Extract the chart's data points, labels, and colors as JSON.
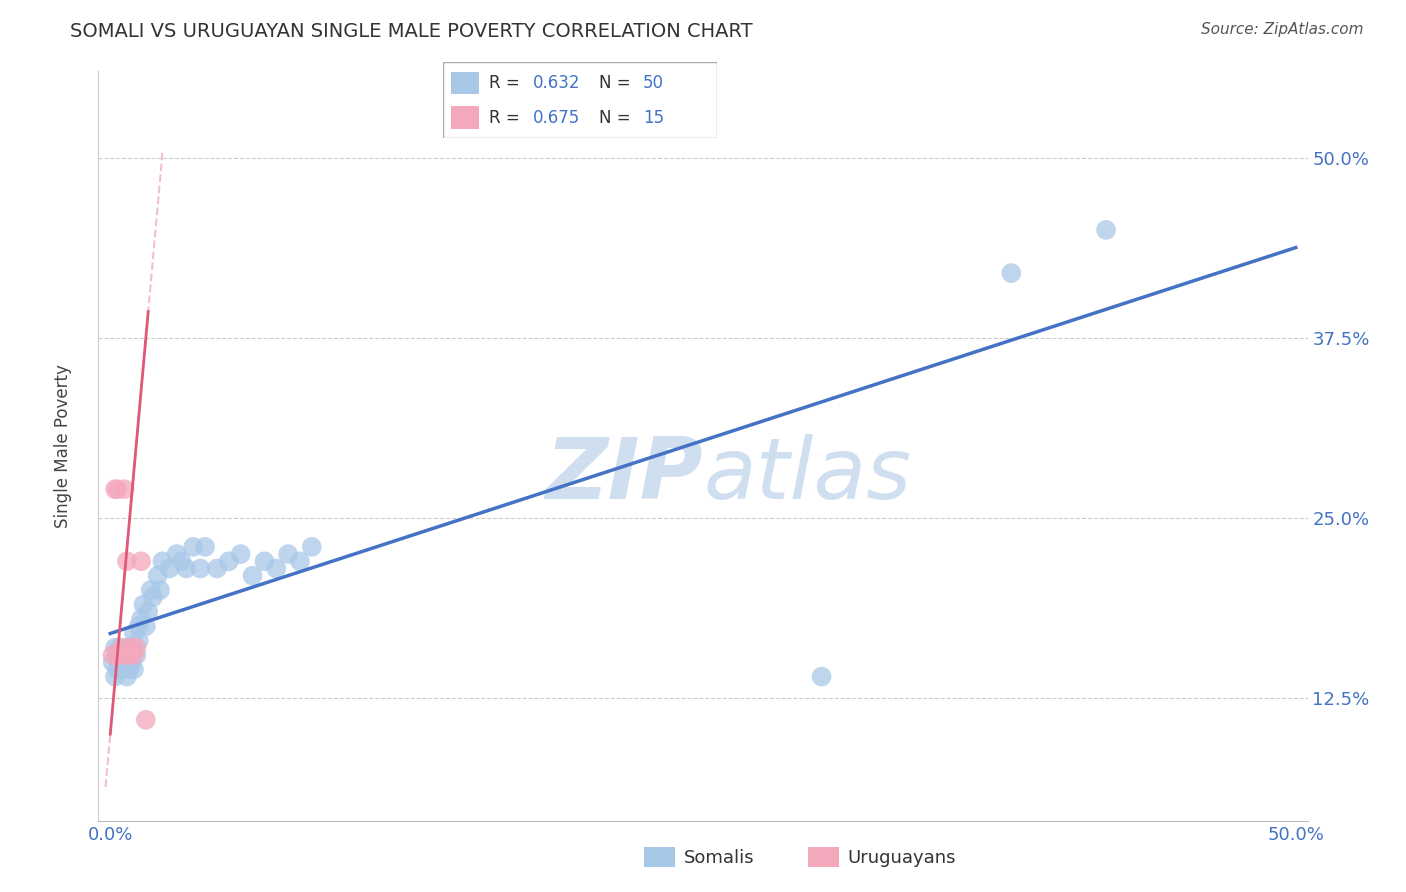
{
  "title": "SOMALI VS URUGUAYAN SINGLE MALE POVERTY CORRELATION CHART",
  "source": "Source: ZipAtlas.com",
  "ylabel_label": "Single Male Poverty",
  "somali_R": 0.632,
  "somali_N": 50,
  "uruguayan_R": 0.675,
  "uruguayan_N": 15,
  "somali_color": "#a8c8e8",
  "uruguayan_color": "#f4a8bc",
  "somali_line_color": "#4472c4",
  "uruguayan_line_color": "#e05878",
  "uruguayan_dashed_color": "#f0b8c8",
  "legend_color": "#4472c4",
  "watermark_color": "#d0dff0",
  "somali_x": [
    0.001,
    0.002,
    0.002,
    0.003,
    0.003,
    0.004,
    0.004,
    0.005,
    0.005,
    0.006,
    0.006,
    0.007,
    0.007,
    0.008,
    0.008,
    0.009,
    0.01,
    0.01,
    0.01,
    0.011,
    0.012,
    0.012,
    0.013,
    0.014,
    0.015,
    0.016,
    0.017,
    0.018,
    0.02,
    0.021,
    0.022,
    0.025,
    0.028,
    0.03,
    0.032,
    0.035,
    0.038,
    0.04,
    0.045,
    0.05,
    0.055,
    0.06,
    0.065,
    0.07,
    0.075,
    0.08,
    0.085,
    0.3,
    0.38,
    0.42
  ],
  "somali_y": [
    0.15,
    0.16,
    0.14,
    0.155,
    0.145,
    0.16,
    0.15,
    0.155,
    0.145,
    0.15,
    0.155,
    0.16,
    0.14,
    0.155,
    0.145,
    0.15,
    0.16,
    0.17,
    0.145,
    0.155,
    0.165,
    0.175,
    0.18,
    0.19,
    0.175,
    0.185,
    0.2,
    0.195,
    0.21,
    0.2,
    0.22,
    0.215,
    0.225,
    0.22,
    0.215,
    0.23,
    0.215,
    0.23,
    0.215,
    0.22,
    0.225,
    0.21,
    0.22,
    0.215,
    0.225,
    0.22,
    0.23,
    0.14,
    0.42,
    0.45
  ],
  "uruguayan_x": [
    0.001,
    0.002,
    0.003,
    0.003,
    0.004,
    0.005,
    0.006,
    0.006,
    0.007,
    0.008,
    0.009,
    0.01,
    0.011,
    0.013,
    0.015
  ],
  "uruguayan_y": [
    0.155,
    0.27,
    0.27,
    0.155,
    0.155,
    0.16,
    0.27,
    0.155,
    0.22,
    0.155,
    0.16,
    0.155,
    0.16,
    0.22,
    0.11
  ],
  "xlim": [
    0.0,
    0.5
  ],
  "ylim": [
    0.04,
    0.56
  ],
  "xticks": [
    0.0,
    0.125,
    0.25,
    0.375,
    0.5
  ],
  "yticks": [
    0.125,
    0.25,
    0.375,
    0.5
  ],
  "xtick_labels": [
    "0.0%",
    "",
    "",
    "",
    "50.0%"
  ],
  "ytick_labels": [
    "12.5%",
    "25.0%",
    "37.5%",
    "50.0%"
  ]
}
